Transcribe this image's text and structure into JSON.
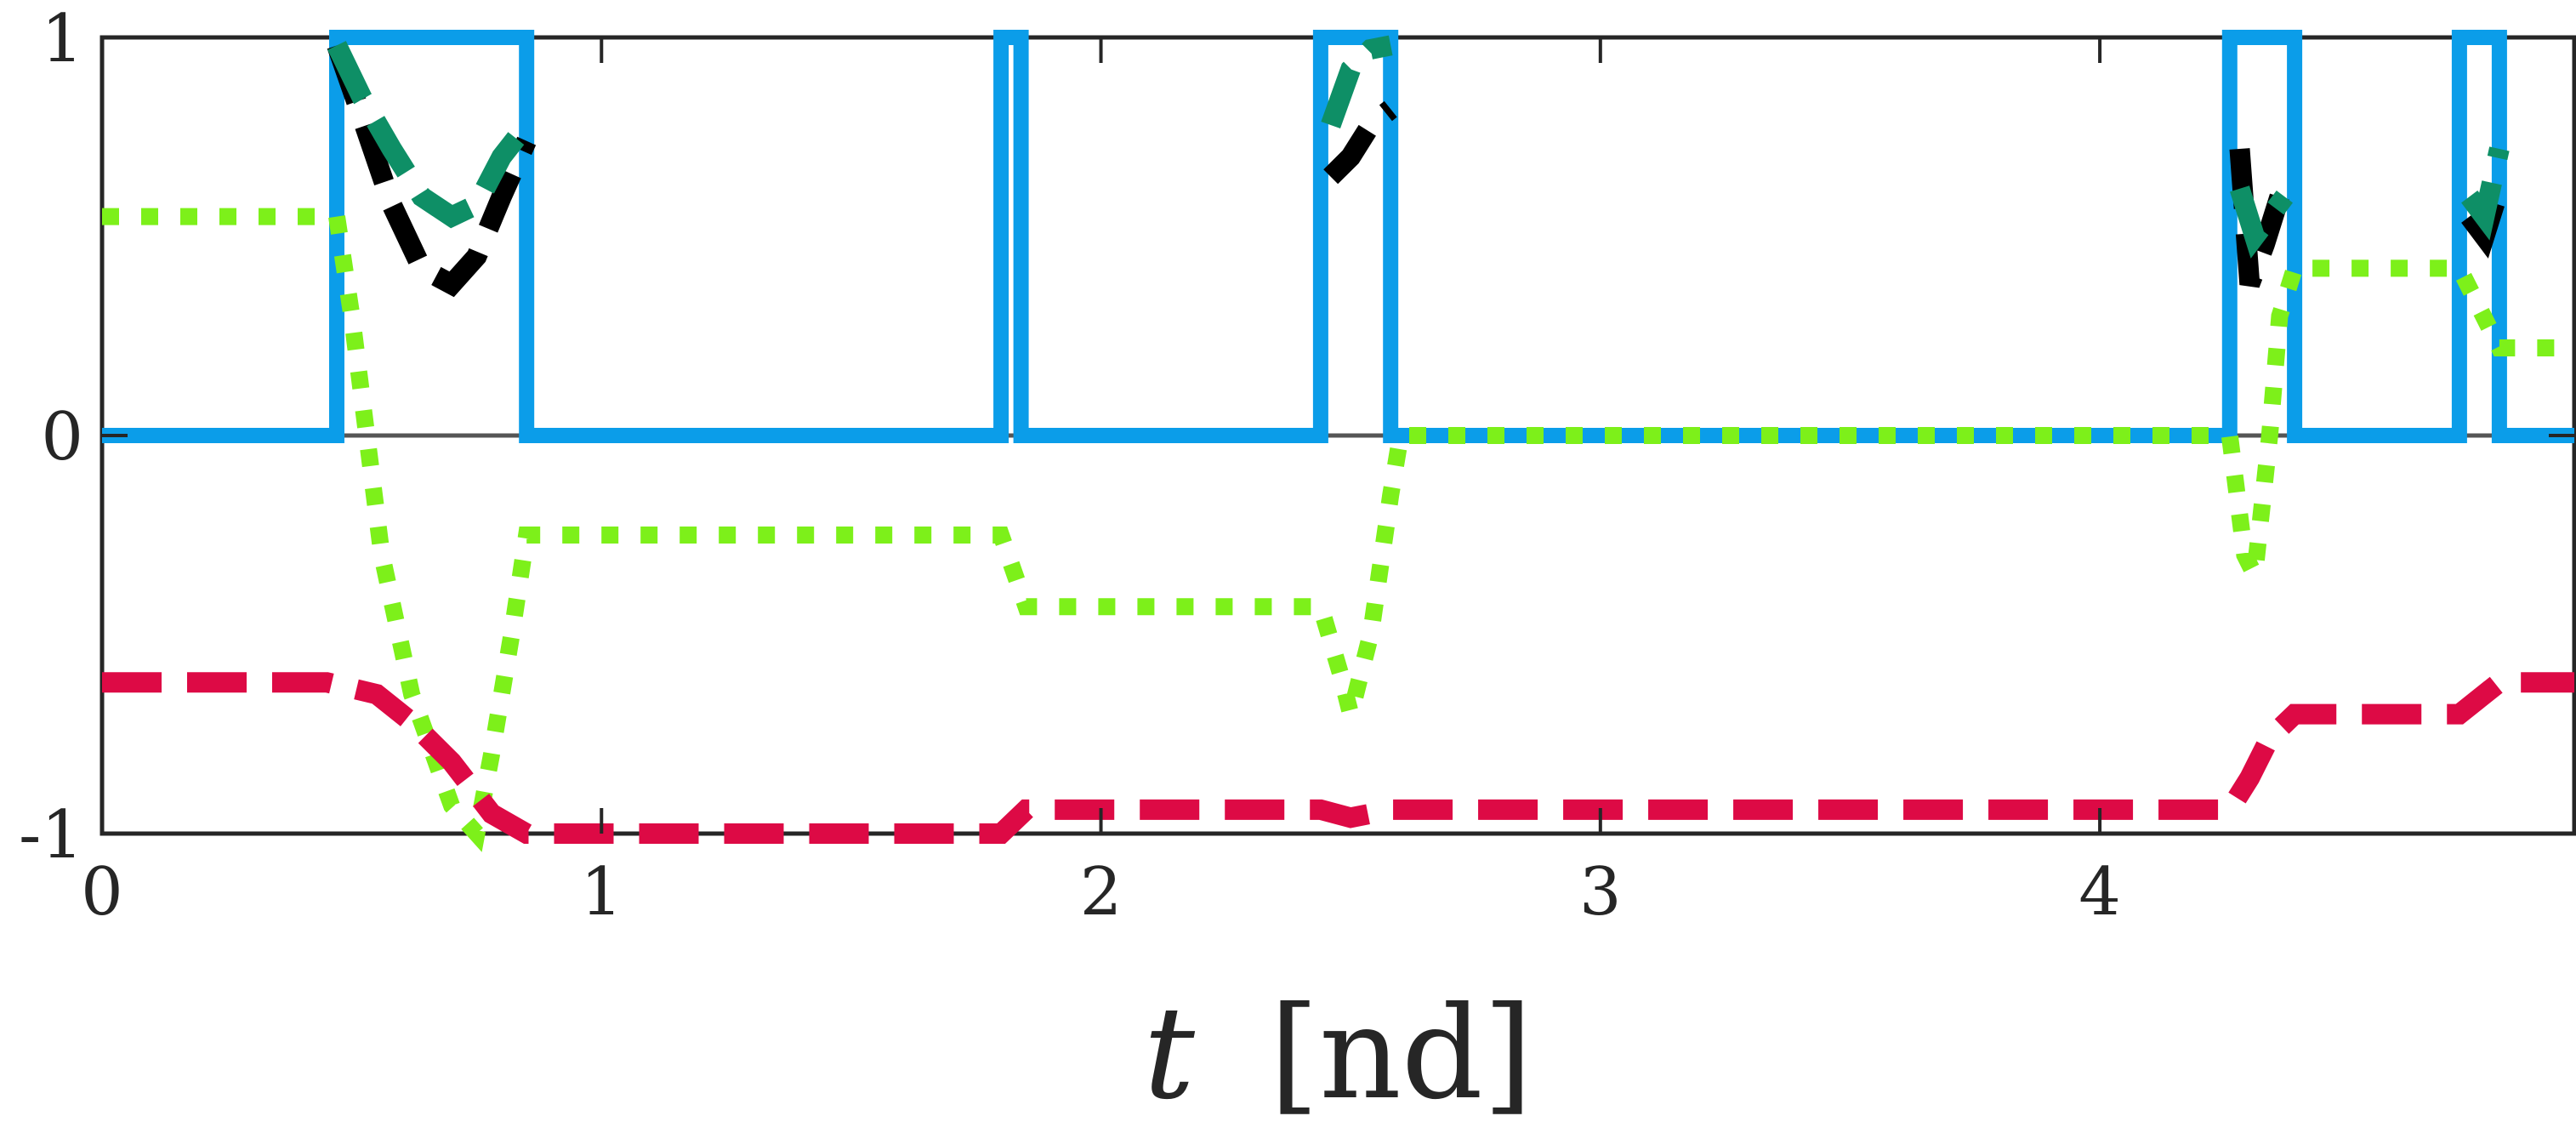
{
  "chart_data": {
    "type": "line",
    "xlabel_var": "t",
    "xlabel_unit": "[nd]",
    "ylabel": "",
    "xlim": [
      0,
      4.95
    ],
    "ylim": [
      -1,
      1
    ],
    "grid": false,
    "legend": "none",
    "x_ticks": [
      0,
      1,
      2,
      3,
      4
    ],
    "y_ticks": [
      -1,
      0,
      1
    ],
    "x_tick_labels": [
      "0",
      "1",
      "2",
      "3",
      "4"
    ],
    "y_tick_labels": [
      "-1",
      "0",
      "1"
    ],
    "zero_line": true,
    "series": [
      {
        "color": "#0b9de9",
        "style": "solid",
        "points": [
          [
            0,
            0
          ],
          [
            0.47,
            0
          ],
          [
            0.47,
            1
          ],
          [
            0.85,
            1
          ],
          [
            0.85,
            0
          ],
          [
            1.8,
            0
          ],
          [
            1.8,
            1
          ],
          [
            1.84,
            1
          ],
          [
            1.84,
            0
          ],
          [
            2.44,
            0
          ],
          [
            2.44,
            1
          ],
          [
            2.58,
            1
          ],
          [
            2.58,
            0
          ],
          [
            4.26,
            0
          ],
          [
            4.26,
            1
          ],
          [
            4.39,
            1
          ],
          [
            4.39,
            0
          ],
          [
            4.72,
            0
          ],
          [
            4.72,
            1
          ],
          [
            4.8,
            1
          ],
          [
            4.8,
            0
          ],
          [
            4.95,
            0
          ]
        ]
      },
      {
        "color": "#7df01a",
        "style": "dotted",
        "points": [
          [
            0,
            0.55
          ],
          [
            0.47,
            0.55
          ],
          [
            0.5,
            0.3
          ],
          [
            0.56,
            -0.3
          ],
          [
            0.62,
            -0.65
          ],
          [
            0.7,
            -0.93
          ],
          [
            0.75,
            -1.0
          ],
          [
            0.78,
            -0.8
          ],
          [
            0.82,
            -0.5
          ],
          [
            0.85,
            -0.25
          ],
          [
            1.8,
            -0.25
          ],
          [
            1.85,
            -0.43
          ],
          [
            2.44,
            -0.43
          ],
          [
            2.48,
            -0.6
          ],
          [
            2.5,
            -0.7
          ],
          [
            2.54,
            -0.5
          ],
          [
            2.58,
            -0.15
          ],
          [
            2.6,
            0
          ],
          [
            4.26,
            0
          ],
          [
            4.29,
            -0.3
          ],
          [
            4.31,
            -0.35
          ],
          [
            4.34,
            0
          ],
          [
            4.36,
            0.3
          ],
          [
            4.39,
            0.42
          ],
          [
            4.72,
            0.42
          ],
          [
            4.8,
            0.22
          ],
          [
            4.95,
            0.22
          ]
        ]
      },
      {
        "color": "#dd0a45",
        "style": "dashed",
        "points": [
          [
            0,
            -0.62
          ],
          [
            0.45,
            -0.62
          ],
          [
            0.55,
            -0.65
          ],
          [
            0.62,
            -0.72
          ],
          [
            0.7,
            -0.82
          ],
          [
            0.78,
            -0.95
          ],
          [
            0.85,
            -1.0
          ],
          [
            1.8,
            -1.0
          ],
          [
            1.85,
            -0.94
          ],
          [
            2.44,
            -0.94
          ],
          [
            2.5,
            -0.96
          ],
          [
            2.58,
            -0.94
          ],
          [
            4.26,
            -0.94
          ],
          [
            4.3,
            -0.86
          ],
          [
            4.34,
            -0.76
          ],
          [
            4.39,
            -0.7
          ],
          [
            4.72,
            -0.7
          ],
          [
            4.8,
            -0.62
          ],
          [
            4.95,
            -0.62
          ]
        ]
      },
      {
        "color": "#000000",
        "style": "dashed",
        "points": [
          [
            0.47,
            0.98
          ],
          [
            0.52,
            0.8
          ],
          [
            0.58,
            0.58
          ],
          [
            0.64,
            0.42
          ],
          [
            0.7,
            0.38
          ],
          [
            0.75,
            0.45
          ],
          [
            0.8,
            0.6
          ],
          [
            0.85,
            0.74
          ]
        ]
      },
      {
        "color": "#000000",
        "style": "dashed",
        "points": [
          [
            2.46,
            0.65
          ],
          [
            2.5,
            0.7
          ],
          [
            2.54,
            0.78
          ],
          [
            2.58,
            0.82
          ]
        ]
      },
      {
        "color": "#000000",
        "style": "dashed",
        "points": [
          [
            4.28,
            0.72
          ],
          [
            4.3,
            0.38
          ],
          [
            4.33,
            0.48
          ],
          [
            4.36,
            0.6
          ]
        ]
      },
      {
        "color": "#000000",
        "style": "dashed",
        "points": [
          [
            4.74,
            0.55
          ],
          [
            4.77,
            0.5
          ],
          [
            4.8,
            0.62
          ]
        ]
      },
      {
        "color": "#0e8f66",
        "style": "dashed",
        "points": [
          [
            0.47,
            0.98
          ],
          [
            0.52,
            0.85
          ],
          [
            0.58,
            0.72
          ],
          [
            0.64,
            0.6
          ],
          [
            0.7,
            0.55
          ],
          [
            0.75,
            0.58
          ],
          [
            0.8,
            0.7
          ],
          [
            0.85,
            0.78
          ]
        ]
      },
      {
        "color": "#0e8f66",
        "style": "dashed",
        "points": [
          [
            2.46,
            0.78
          ],
          [
            2.5,
            0.92
          ],
          [
            2.54,
            0.97
          ],
          [
            2.58,
            0.98
          ]
        ]
      },
      {
        "color": "#0e8f66",
        "style": "dashed",
        "points": [
          [
            4.28,
            0.62
          ],
          [
            4.31,
            0.5
          ],
          [
            4.34,
            0.55
          ],
          [
            4.37,
            0.6
          ]
        ]
      },
      {
        "color": "#0e8f66",
        "style": "dashed",
        "points": [
          [
            4.74,
            0.6
          ],
          [
            4.77,
            0.55
          ],
          [
            4.8,
            0.72
          ]
        ]
      }
    ]
  }
}
